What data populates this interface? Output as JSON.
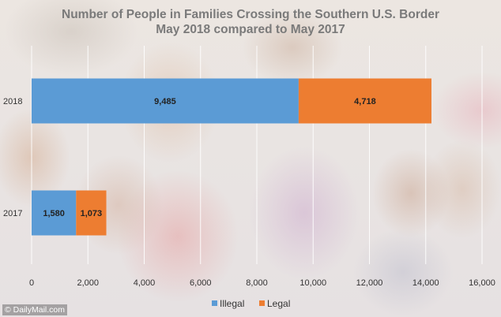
{
  "chart_data": {
    "type": "bar",
    "orientation": "horizontal",
    "stacked": true,
    "title": "Number of People in Families Crossing the Southern U.S. Border",
    "subtitle": "May 2018 compared to May 2017",
    "categories": [
      "2018",
      "2017"
    ],
    "series": [
      {
        "name": "Illegal",
        "color": "#5b9bd5",
        "values": [
          9485,
          1580
        ],
        "labels": [
          "9,485",
          "1,580"
        ]
      },
      {
        "name": "Legal",
        "color": "#ed7d31",
        "values": [
          4718,
          1073
        ],
        "labels": [
          "4,718",
          "1,073"
        ]
      }
    ],
    "x_ticks": [
      "0",
      "2,000",
      "4,000",
      "6,000",
      "8,000",
      "10,000",
      "12,000",
      "14,000",
      "16,000"
    ],
    "xlim": [
      0,
      16000
    ],
    "xlabel": "",
    "ylabel": "",
    "grid": true,
    "legend_position": "bottom"
  },
  "watermark": "© DailyMail.com"
}
